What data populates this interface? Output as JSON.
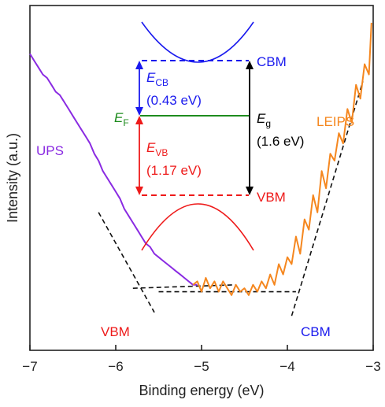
{
  "chart_data": {
    "type": "line",
    "xlabel": "Binding energy (eV)",
    "ylabel": "Intensity (a.u.)",
    "xlim": [
      -7,
      -3
    ],
    "x_ticks": [
      -7,
      -6,
      -5,
      -4,
      -3
    ],
    "x_tick_labels": [
      "−7",
      "−6",
      "−5",
      "−4",
      "−3"
    ],
    "y_ticks_shown": false,
    "series": [
      {
        "name": "UPS",
        "color": "#8a2be2",
        "x": [
          -7.0,
          -6.95,
          -6.9,
          -6.85,
          -6.8,
          -6.75,
          -6.7,
          -6.65,
          -6.6,
          -6.55,
          -6.5,
          -6.45,
          -6.4,
          -6.35,
          -6.3,
          -6.25,
          -6.2,
          -6.15,
          -6.1,
          -6.05,
          -6.0,
          -5.95,
          -5.9,
          -5.85,
          -5.8,
          -5.75,
          -5.7,
          -5.65,
          -5.6,
          -5.55,
          -5.5,
          -5.45,
          -5.4,
          -5.35,
          -5.3,
          -5.25,
          -5.2,
          -5.15,
          -5.1,
          -5.05
        ],
        "y": [
          0.86,
          0.84,
          0.82,
          0.8,
          0.79,
          0.77,
          0.75,
          0.74,
          0.72,
          0.7,
          0.68,
          0.66,
          0.64,
          0.62,
          0.6,
          0.57,
          0.55,
          0.52,
          0.5,
          0.48,
          0.46,
          0.44,
          0.41,
          0.39,
          0.37,
          0.35,
          0.33,
          0.31,
          0.3,
          0.28,
          0.27,
          0.26,
          0.25,
          0.24,
          0.23,
          0.22,
          0.21,
          0.2,
          0.19,
          0.19
        ]
      },
      {
        "name": "LEIPS",
        "color": "#f5871f",
        "x": [
          -5.1,
          -5.05,
          -5.0,
          -4.95,
          -4.9,
          -4.85,
          -4.8,
          -4.75,
          -4.7,
          -4.65,
          -4.6,
          -4.55,
          -4.5,
          -4.45,
          -4.4,
          -4.35,
          -4.3,
          -4.25,
          -4.2,
          -4.15,
          -4.1,
          -4.05,
          -4.0,
          -3.95,
          -3.9,
          -3.85,
          -3.8,
          -3.75,
          -3.7,
          -3.65,
          -3.6,
          -3.55,
          -3.5,
          -3.45,
          -3.4,
          -3.35,
          -3.3,
          -3.25,
          -3.2,
          -3.15,
          -3.1,
          -3.05,
          -3.02
        ],
        "y": [
          0.19,
          0.2,
          0.17,
          0.21,
          0.18,
          0.2,
          0.17,
          0.2,
          0.18,
          0.16,
          0.19,
          0.17,
          0.18,
          0.16,
          0.19,
          0.17,
          0.2,
          0.18,
          0.22,
          0.19,
          0.25,
          0.22,
          0.27,
          0.25,
          0.33,
          0.28,
          0.38,
          0.35,
          0.45,
          0.4,
          0.52,
          0.47,
          0.57,
          0.55,
          0.63,
          0.6,
          0.7,
          0.66,
          0.77,
          0.73,
          0.83,
          0.8,
          0.95
        ]
      }
    ],
    "fit_lines": [
      {
        "name": "ups-onset",
        "x": [
          -6.2,
          -5.55
        ],
        "y": [
          0.4,
          0.11
        ]
      },
      {
        "name": "ups-baseline",
        "x": [
          -5.8,
          -4.6
        ],
        "y": [
          0.18,
          0.19
        ]
      },
      {
        "name": "leips-onset",
        "x": [
          -3.95,
          -3.12
        ],
        "y": [
          0.1,
          0.78
        ]
      },
      {
        "name": "leips-baseline",
        "x": [
          -5.5,
          -3.9
        ],
        "y": [
          0.17,
          0.17
        ]
      }
    ],
    "annotations": {
      "ups_label": "UPS",
      "leips_label": "LEIPS",
      "vbm_marker": "VBM",
      "cbm_marker": "CBM"
    }
  },
  "inset": {
    "cbm_label": "CBM",
    "vbm_label": "VBM",
    "ef_main": "E",
    "ef_sub": "F",
    "ecb_main": "E",
    "ecb_sub": "CB",
    "ecb_value": "(0.43 eV)",
    "evb_main": "E",
    "evb_sub": "VB",
    "evb_value": "(1.17 eV)",
    "eg_main": "E",
    "eg_sub": "g",
    "eg_value": "(1.6 eV)",
    "colors": {
      "conduction": "#1a1aee",
      "valence": "#ee1a1a",
      "fermi": "#1e8c1e",
      "gap": "#000000",
      "ups": "#8a2be2",
      "leips": "#f5871f"
    }
  }
}
